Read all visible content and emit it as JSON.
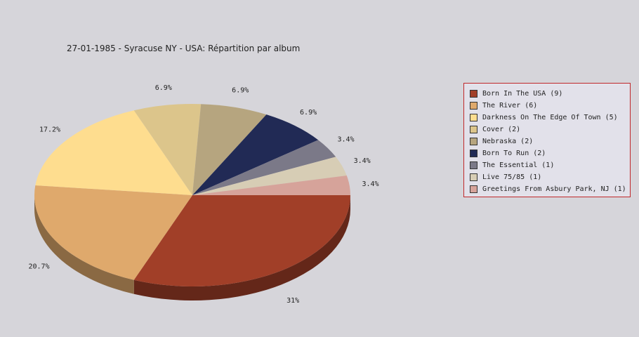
{
  "chart_data": {
    "type": "pie",
    "title": "27-01-1985 - Syracuse NY - USA:  Répartition par album",
    "slices": [
      {
        "name": "Born In The USA",
        "legend": "Born In The USA (9)",
        "value": 9,
        "label": "31%",
        "color": "#a13f28"
      },
      {
        "name": "The River",
        "legend": "The River (6)",
        "value": 6,
        "label": "20.7%",
        "color": "#dfa96c"
      },
      {
        "name": "Darkness On The Edge Of Town",
        "legend": "Darkness On The Edge Of Town (5)",
        "value": 5,
        "label": "17.2%",
        "color": "#fedd8f"
      },
      {
        "name": "Cover",
        "legend": "Cover (2)",
        "value": 2,
        "label": "6.9%",
        "color": "#dcc58b"
      },
      {
        "name": "Nebraska",
        "legend": "Nebraska (2)",
        "value": 2,
        "label": "6.9%",
        "color": "#b6a57f"
      },
      {
        "name": "Born To Run",
        "legend": "Born To Run (2)",
        "value": 2,
        "label": "6.9%",
        "color": "#212a55"
      },
      {
        "name": "The Essential",
        "legend": "The Essential (1)",
        "value": 1,
        "label": "3.4%",
        "color": "#7b7988"
      },
      {
        "name": "Live 75/85",
        "legend": "Live 75/85 (1)",
        "value": 1,
        "label": "3.4%",
        "color": "#d7cdb5"
      },
      {
        "name": "Greetings From Asbury Park, NJ",
        "legend": "Greetings From Asbury Park, NJ (1)",
        "value": 1,
        "label": "3.4%",
        "color": "#d6a39a"
      }
    ],
    "legend_position": "right"
  }
}
